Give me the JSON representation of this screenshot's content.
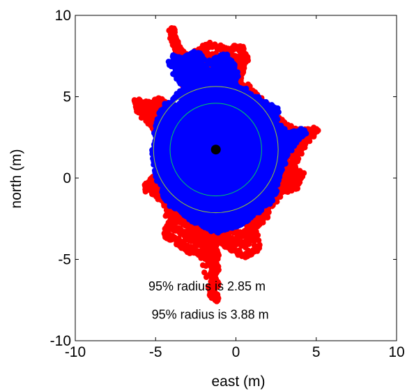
{
  "chart_data": {
    "type": "scatter",
    "title": "",
    "xlabel": "east (m)",
    "ylabel": "north (m)",
    "xlim": [
      -10,
      10
    ],
    "ylim": [
      -10,
      10
    ],
    "xticks": [
      -10,
      -5,
      0,
      5,
      10
    ],
    "yticks": [
      -10,
      -5,
      0,
      5,
      10
    ],
    "grid": false,
    "center": {
      "x": -1.25,
      "y": 1.75,
      "color": "#000000"
    },
    "circles": [
      {
        "x": -1.25,
        "y": 1.75,
        "r": 2.85,
        "color": "#00cc66"
      },
      {
        "x": -1.25,
        "y": 1.75,
        "r": 3.88,
        "color": "#99cc33"
      }
    ],
    "annotations": [
      {
        "text": "95% radius is 2.85 m",
        "x": -1.8,
        "y": -6.7
      },
      {
        "text": "95% radius is 3.88 m",
        "x": -1.6,
        "y": -8.45
      }
    ],
    "series": [
      {
        "color": "#ff0000",
        "points": [
          [
            -4.6,
            4.8
          ],
          [
            -5.5,
            4.5
          ],
          [
            -6.2,
            4.7
          ],
          [
            -6.0,
            4.2
          ],
          [
            -5.7,
            3.8
          ],
          [
            -4.8,
            2.8
          ],
          [
            -5.0,
            1.2
          ],
          [
            -4.5,
            0.4
          ],
          [
            -5.3,
            -0.3
          ],
          [
            -5.6,
            -0.6
          ],
          [
            -4.4,
            -1.3
          ],
          [
            -4.1,
            -2.8
          ],
          [
            -4.4,
            -3.5
          ],
          [
            -3.6,
            -3.9
          ],
          [
            -3.2,
            -4.2
          ],
          [
            -2.9,
            -4.4
          ],
          [
            -2.2,
            -4.7
          ],
          [
            -1.5,
            -4.0
          ],
          [
            -1.0,
            -3.6
          ],
          [
            -0.5,
            -4.2
          ],
          [
            0.6,
            -4.8
          ],
          [
            1.4,
            -4.3
          ],
          [
            1.0,
            -3.0
          ],
          [
            1.8,
            -2.4
          ],
          [
            2.2,
            -1.6
          ],
          [
            2.8,
            -0.8
          ],
          [
            3.6,
            -0.6
          ],
          [
            3.8,
            -0.3
          ],
          [
            4.1,
            0.2
          ],
          [
            3.4,
            0.6
          ],
          [
            3.6,
            1.0
          ],
          [
            4.5,
            2.5
          ],
          [
            5.0,
            3.0
          ],
          [
            4.3,
            2.8
          ],
          [
            3.5,
            2.9
          ],
          [
            2.8,
            3.5
          ],
          [
            2.0,
            4.2
          ],
          [
            1.1,
            5.3
          ],
          [
            0.1,
            6.0
          ],
          [
            0.2,
            6.8
          ],
          [
            0.6,
            7.4
          ],
          [
            0.3,
            8.0
          ],
          [
            -0.6,
            7.9
          ],
          [
            -1.6,
            8.2
          ],
          [
            -2.2,
            7.8
          ],
          [
            -3.0,
            7.3
          ],
          [
            -3.9,
            8.5
          ],
          [
            -4.0,
            9.2
          ],
          [
            -3.5,
            6.6
          ],
          [
            -3.2,
            5.8
          ],
          [
            -1.7,
            -5.0
          ],
          [
            -1.4,
            -5.8
          ],
          [
            -1.3,
            -6.5
          ],
          [
            -1.5,
            -6.9
          ],
          [
            -1.4,
            -7.2
          ],
          [
            -1.2,
            -7.5
          ],
          [
            -4.3,
            0.9
          ],
          [
            -3.9,
            -1.0
          ],
          [
            2.5,
            1.8
          ],
          [
            2.3,
            -1.0
          ]
        ]
      },
      {
        "color": "#0000ff",
        "points": [
          [
            -3.8,
            7.4
          ],
          [
            -3.3,
            7.2
          ],
          [
            -2.7,
            7.6
          ],
          [
            -2.3,
            7.5
          ],
          [
            -2.1,
            6.0
          ],
          [
            -3.5,
            6.9
          ],
          [
            -4.1,
            7.0
          ],
          [
            -1.3,
            7.2
          ],
          [
            -0.7,
            7.5
          ],
          [
            -0.2,
            6.9
          ],
          [
            0.0,
            6.1
          ],
          [
            -2.9,
            6.4
          ],
          [
            -2.6,
            5.8
          ],
          [
            -4.3,
            4.5
          ],
          [
            -4.7,
            3.8
          ],
          [
            -4.9,
            2.8
          ],
          [
            -5.1,
            1.5
          ],
          [
            -4.9,
            0.2
          ],
          [
            -4.5,
            -0.6
          ],
          [
            -4.3,
            -1.3
          ],
          [
            -3.6,
            -1.8
          ],
          [
            -3.0,
            -2.3
          ],
          [
            -2.2,
            -2.7
          ],
          [
            -1.3,
            -3.2
          ],
          [
            -0.6,
            -3.0
          ],
          [
            0.3,
            -2.8
          ],
          [
            1.2,
            -2.0
          ],
          [
            2.0,
            -1.5
          ],
          [
            2.4,
            -0.6
          ],
          [
            2.7,
            0.4
          ],
          [
            3.0,
            1.3
          ],
          [
            3.6,
            2.2
          ],
          [
            4.0,
            2.7
          ],
          [
            4.2,
            2.9
          ],
          [
            3.4,
            2.6
          ],
          [
            2.4,
            3.2
          ],
          [
            2.5,
            4.2
          ],
          [
            1.8,
            4.5
          ],
          [
            0.8,
            5.2
          ],
          [
            -0.3,
            5.6
          ]
        ]
      }
    ]
  }
}
